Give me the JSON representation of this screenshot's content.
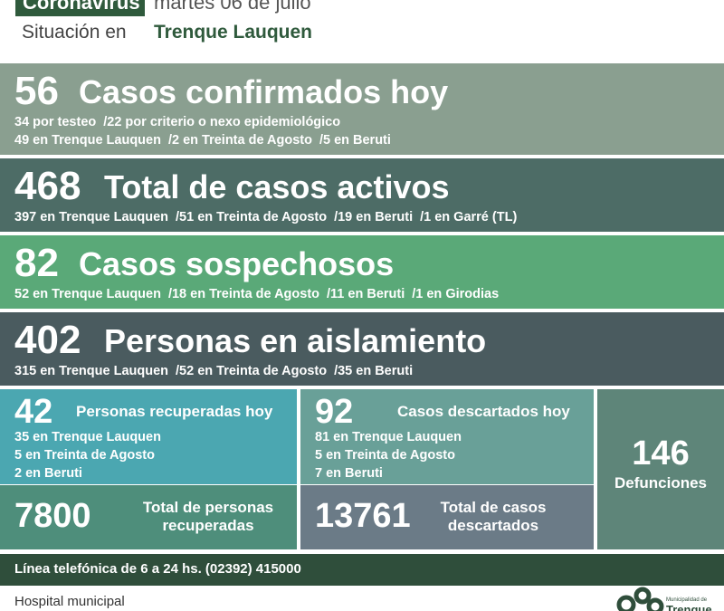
{
  "header": {
    "badge": "Coronavirus",
    "date": "martes 06 de julio",
    "situation_label": "Situación en",
    "place": "Trenque Lauquen"
  },
  "panels": [
    {
      "number": 56,
      "title": "Casos confirmados hoy",
      "lines": [
        [
          "34 por testeo",
          "/22 por criterio o nexo epidemiológico"
        ],
        [
          "49 en Trenque Lauquen",
          "/2 en Treinta de Agosto",
          "/5 en Beruti"
        ]
      ]
    },
    {
      "number": 468,
      "title": "Total de casos activos",
      "lines": [
        [
          "397 en Trenque Lauquen",
          "/51 en Treinta de Agosto",
          "/19 en Beruti",
          "/1 en Garré (TL)"
        ]
      ]
    },
    {
      "number": 82,
      "title": "Casos sospechosos",
      "lines": [
        [
          "52 en Trenque Lauquen",
          "/18 en Treinta de Agosto",
          "/11 en Beruti",
          "/1 en Girodias"
        ]
      ]
    },
    {
      "number": 402,
      "title": "Personas en aislamiento",
      "lines": [
        [
          "315 en Trenque Lauquen",
          "/52 en Treinta de Agosto",
          "/35 en Beruti"
        ]
      ]
    }
  ],
  "recovered": {
    "number": 42,
    "title": "Personas recuperadas hoy",
    "lines": [
      "35 en Trenque Lauquen",
      "5 en Treinta de Agosto",
      "2 en Beruti"
    ],
    "total": 7800,
    "total_label": "Total de personas recuperadas"
  },
  "discarded": {
    "number": 92,
    "title": "Casos descartados hoy",
    "lines": [
      "81 en Trenque Lauquen",
      "5 en Treinta de Agosto",
      "7 en Beruti"
    ],
    "total": 13761,
    "total_label": "Total de casos descartados"
  },
  "deaths": {
    "number": 146,
    "label": "Defunciones"
  },
  "phone": "Línea telefónica de 6 a 24 hs. (02392) 415000",
  "footer": {
    "hospital": "Hospital municipal",
    "logo_small": "Municipalidad de",
    "logo_big": "Trenque"
  }
}
